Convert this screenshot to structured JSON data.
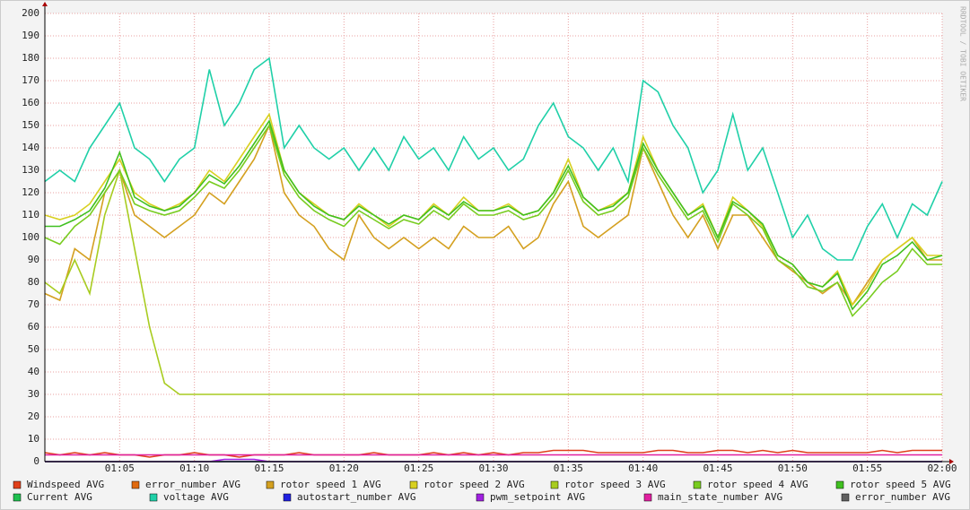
{
  "chart_data": {
    "type": "line",
    "watermark": "RRDTOOL / TOBI OETIKER",
    "x": [
      "01:00",
      "01:01",
      "01:02",
      "01:03",
      "01:04",
      "01:05",
      "01:06",
      "01:07",
      "01:08",
      "01:09",
      "01:10",
      "01:11",
      "01:12",
      "01:13",
      "01:14",
      "01:15",
      "01:16",
      "01:17",
      "01:18",
      "01:19",
      "01:20",
      "01:21",
      "01:22",
      "01:23",
      "01:24",
      "01:25",
      "01:26",
      "01:27",
      "01:28",
      "01:29",
      "01:30",
      "01:31",
      "01:32",
      "01:33",
      "01:34",
      "01:35",
      "01:36",
      "01:37",
      "01:38",
      "01:39",
      "01:40",
      "01:41",
      "01:42",
      "01:43",
      "01:44",
      "01:45",
      "01:46",
      "01:47",
      "01:48",
      "01:49",
      "01:50",
      "01:51",
      "01:52",
      "01:53",
      "01:54",
      "01:55",
      "01:56",
      "01:57",
      "01:58",
      "01:59",
      "02:00"
    ],
    "xticks": [
      "01:05",
      "01:10",
      "01:15",
      "01:20",
      "01:25",
      "01:30",
      "01:35",
      "01:40",
      "01:45",
      "01:50",
      "01:55",
      "02:00"
    ],
    "ylim": [
      0,
      200
    ],
    "yticks": [
      0,
      10,
      20,
      30,
      40,
      50,
      60,
      70,
      80,
      90,
      100,
      110,
      120,
      130,
      140,
      150,
      160,
      170,
      180,
      190,
      200
    ],
    "grid": true,
    "series": [
      {
        "name": "Windspeed AVG",
        "color": "#e0401a",
        "values": [
          4,
          3,
          4,
          3,
          4,
          3,
          3,
          2,
          3,
          3,
          4,
          3,
          3,
          2,
          3,
          3,
          3,
          4,
          3,
          3,
          3,
          3,
          4,
          3,
          3,
          3,
          4,
          3,
          4,
          3,
          4,
          3,
          4,
          4,
          5,
          5,
          5,
          4,
          4,
          4,
          4,
          5,
          5,
          4,
          4,
          5,
          5,
          4,
          5,
          4,
          5,
          4,
          4,
          4,
          4,
          4,
          5,
          4,
          5,
          5,
          5
        ]
      },
      {
        "name": "error_number AVG",
        "color": "#e06a10",
        "values": [
          0,
          0,
          0,
          0,
          0,
          0,
          0,
          0,
          0,
          0,
          0,
          0,
          0,
          0,
          0,
          0,
          0,
          0,
          0,
          0,
          0,
          0,
          0,
          0,
          0,
          0,
          0,
          0,
          0,
          0,
          0,
          0,
          0,
          0,
          0,
          0,
          0,
          0,
          0,
          0,
          0,
          0,
          0,
          0,
          0,
          0,
          0,
          0,
          0,
          0,
          0,
          0,
          0,
          0,
          0,
          0,
          0,
          0,
          0,
          0,
          0
        ]
      },
      {
        "name": "rotor speed 1 AVG",
        "color": "#d4a020",
        "values": [
          75,
          72,
          95,
          90,
          120,
          130,
          110,
          105,
          100,
          105,
          110,
          120,
          115,
          125,
          135,
          150,
          120,
          110,
          105,
          95,
          90,
          110,
          100,
          95,
          100,
          95,
          100,
          95,
          105,
          100,
          100,
          105,
          95,
          100,
          115,
          125,
          105,
          100,
          105,
          110,
          140,
          125,
          110,
          100,
          110,
          95,
          110,
          110,
          100,
          90,
          85,
          80,
          75,
          80,
          70,
          80,
          90,
          95,
          100,
          90,
          90
        ]
      },
      {
        "name": "rotor speed 2 AVG",
        "color": "#d8d020",
        "values": [
          110,
          108,
          110,
          115,
          125,
          135,
          120,
          115,
          112,
          115,
          120,
          130,
          125,
          135,
          145,
          155,
          130,
          120,
          115,
          110,
          108,
          115,
          110,
          105,
          110,
          108,
          115,
          110,
          118,
          112,
          112,
          115,
          110,
          112,
          120,
          135,
          118,
          112,
          115,
          120,
          145,
          130,
          120,
          110,
          115,
          100,
          118,
          112,
          105,
          92,
          88,
          80,
          78,
          85,
          70,
          78,
          90,
          95,
          100,
          92,
          92
        ]
      },
      {
        "name": "rotor speed 3 AVG",
        "color": "#a8cc20",
        "values": [
          80,
          75,
          90,
          75,
          110,
          130,
          95,
          60,
          35,
          30,
          30,
          30,
          30,
          30,
          30,
          30,
          30,
          30,
          30,
          30,
          30,
          30,
          30,
          30,
          30,
          30,
          30,
          30,
          30,
          30,
          30,
          30,
          30,
          30,
          30,
          30,
          30,
          30,
          30,
          30,
          30,
          30,
          30,
          30,
          30,
          30,
          30,
          30,
          30,
          30,
          30,
          30,
          30,
          30,
          30,
          30,
          30,
          30,
          30,
          30,
          30
        ]
      },
      {
        "name": "rotor speed 4 AVG",
        "color": "#78cc20",
        "values": [
          100,
          97,
          105,
          110,
          120,
          130,
          115,
          112,
          110,
          112,
          118,
          125,
          122,
          130,
          140,
          150,
          128,
          118,
          112,
          108,
          105,
          112,
          108,
          104,
          108,
          106,
          112,
          108,
          115,
          110,
          110,
          112,
          108,
          110,
          118,
          130,
          116,
          110,
          112,
          118,
          140,
          128,
          118,
          108,
          112,
          98,
          115,
          110,
          104,
          90,
          86,
          78,
          76,
          80,
          65,
          72,
          80,
          85,
          95,
          88,
          88
        ]
      },
      {
        "name": "rotor speed 5 AVG",
        "color": "#40c020",
        "values": [
          105,
          105,
          108,
          112,
          122,
          138,
          118,
          114,
          112,
          114,
          120,
          128,
          124,
          132,
          142,
          152,
          130,
          120,
          114,
          110,
          108,
          114,
          110,
          106,
          110,
          108,
          114,
          110,
          116,
          112,
          112,
          114,
          110,
          112,
          120,
          132,
          118,
          112,
          114,
          120,
          142,
          130,
          120,
          110,
          114,
          100,
          116,
          112,
          106,
          92,
          88,
          80,
          78,
          84,
          68,
          76,
          88,
          92,
          98,
          90,
          92
        ]
      },
      {
        "name": "Current AVG",
        "color": "#20c050",
        "values": [
          0,
          0,
          0,
          0,
          0,
          0,
          0,
          0,
          0,
          0,
          0,
          0,
          0,
          0,
          0,
          0,
          0,
          0,
          0,
          0,
          0,
          0,
          0,
          0,
          0,
          0,
          0,
          0,
          0,
          0,
          0,
          0,
          0,
          0,
          0,
          0,
          0,
          0,
          0,
          0,
          0,
          0,
          0,
          0,
          0,
          0,
          0,
          0,
          0,
          0,
          0,
          0,
          0,
          0,
          0,
          0,
          0,
          0,
          0,
          0,
          0
        ]
      },
      {
        "name": "voltage AVG",
        "color": "#20d0a8",
        "values": [
          125,
          130,
          125,
          140,
          150,
          160,
          140,
          135,
          125,
          135,
          140,
          175,
          150,
          160,
          175,
          180,
          140,
          150,
          140,
          135,
          140,
          130,
          140,
          130,
          145,
          135,
          140,
          130,
          145,
          135,
          140,
          130,
          135,
          150,
          160,
          145,
          140,
          130,
          140,
          125,
          170,
          165,
          150,
          140,
          120,
          130,
          155,
          130,
          140,
          120,
          100,
          110,
          95,
          90,
          90,
          105,
          115,
          100,
          115,
          110,
          125
        ]
      },
      {
        "name": "autostart_number AVG",
        "color": "#2020e0",
        "values": [
          0,
          0,
          0,
          0,
          0,
          0,
          0,
          0,
          0,
          0,
          0,
          0,
          0,
          0,
          0,
          0,
          0,
          0,
          0,
          0,
          0,
          0,
          0,
          0,
          0,
          0,
          0,
          0,
          0,
          0,
          0,
          0,
          0,
          0,
          0,
          0,
          0,
          0,
          0,
          0,
          0,
          0,
          0,
          0,
          0,
          0,
          0,
          0,
          0,
          0,
          0,
          0,
          0,
          0,
          0,
          0,
          0,
          0,
          0,
          0,
          0
        ]
      },
      {
        "name": "pwm_setpoint AVG",
        "color": "#a020e0",
        "values": [
          0,
          0,
          0,
          0,
          0,
          0,
          0,
          0,
          0,
          0,
          0,
          0,
          1,
          1,
          1,
          0,
          0,
          0,
          0,
          0,
          0,
          0,
          0,
          0,
          0,
          0,
          0,
          0,
          0,
          0,
          0,
          0,
          0,
          0,
          0,
          0,
          0,
          0,
          0,
          0,
          0,
          0,
          0,
          0,
          0,
          0,
          0,
          0,
          0,
          0,
          0,
          0,
          0,
          0,
          0,
          0,
          0,
          0,
          0,
          0,
          0
        ]
      },
      {
        "name": "main_state_number AVG",
        "color": "#e020a0",
        "values": [
          3,
          3,
          3,
          3,
          3,
          3,
          3,
          3,
          3,
          3,
          3,
          3,
          3,
          3,
          3,
          3,
          3,
          3,
          3,
          3,
          3,
          3,
          3,
          3,
          3,
          3,
          3,
          3,
          3,
          3,
          3,
          3,
          3,
          3,
          3,
          3,
          3,
          3,
          3,
          3,
          3,
          3,
          3,
          3,
          3,
          3,
          3,
          3,
          3,
          3,
          3,
          3,
          3,
          3,
          3,
          3,
          3,
          3,
          3,
          3,
          3
        ]
      },
      {
        "name": "error_number AVG",
        "color": "#606060",
        "values": [
          0,
          0,
          0,
          0,
          0,
          0,
          0,
          0,
          0,
          0,
          0,
          0,
          0,
          0,
          0,
          0,
          0,
          0,
          0,
          0,
          0,
          0,
          0,
          0,
          0,
          0,
          0,
          0,
          0,
          0,
          0,
          0,
          0,
          0,
          0,
          0,
          0,
          0,
          0,
          0,
          0,
          0,
          0,
          0,
          0,
          0,
          0,
          0,
          0,
          0,
          0,
          0,
          0,
          0,
          0,
          0,
          0,
          0,
          0,
          0,
          0
        ]
      }
    ]
  }
}
